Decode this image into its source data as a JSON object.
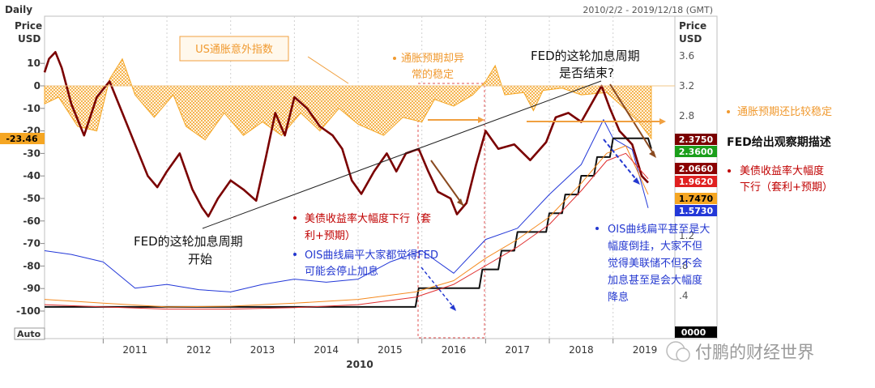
{
  "header": {
    "period": "Daily",
    "range": "2010/2/2 - 2019/12/18 (GMT)",
    "left_axis_title": [
      "Price",
      "USD"
    ],
    "right_axis_title": [
      "Price",
      "USD"
    ],
    "auto_label": "Auto",
    "year_label": "2010"
  },
  "colors": {
    "surprise": "#f5a623",
    "yield": "#7a0000",
    "ois": "#2338d8",
    "fed_rate": "#101010",
    "orange_line": "#f58a1f",
    "red_thin": "#e03030",
    "annotation_blue": "#2438d0",
    "annotation_red": "#c00000",
    "annotation_orange": "#f59a3a"
  },
  "annotations": {
    "us_surprise_box": "US通胀意外指数",
    "infl_stable_1": "通胀预期却异",
    "infl_stable_2": "常的稳定",
    "fed_end_1": "FED的这轮加息周期",
    "fed_end_2": "是否结束?",
    "infl_still_stable": "通胀预期还比较稳定",
    "fed_observe": "FED给出观察期描述",
    "yield_drop_right_1": "美债收益率大幅度",
    "yield_drop_right_2": "下行（套利+预期）",
    "fed_start_1": "FED的这轮加息周期",
    "fed_start_2": "开始",
    "yield_drop_mid_1": "美债收益率大幅度下行（套",
    "yield_drop_mid_2": "利+预期）",
    "ois_mid_1": "OIS曲线扁平大家都觉得FED",
    "ois_mid_2": "可能会停止加息",
    "ois_right_1": "OIS曲线扁平甚至是大",
    "ois_right_2": "幅度倒挂，大家不但",
    "ois_right_3": "觉得美联储不但不会",
    "ois_right_4": "加息甚至是会大幅度",
    "ois_right_5": "降息"
  },
  "value_tags": [
    {
      "label": "-23.46",
      "bg": "#f5a623",
      "fg": "#000000"
    },
    {
      "label": "2.3750",
      "bg": "#7a0000",
      "fg": "#ffffff"
    },
    {
      "label": "2.3600",
      "bg": "#1a9e1a",
      "fg": "#ffffff"
    },
    {
      "label": "2.0660",
      "bg": "#8a0000",
      "fg": "#ffffff"
    },
    {
      "label": "1.9620",
      "bg": "#e02020",
      "fg": "#ffffff"
    },
    {
      "label": "1.7470",
      "bg": "#f5a623",
      "fg": "#000000"
    },
    {
      "label": "1.5730",
      "bg": "#2338d8",
      "fg": "#ffffff"
    },
    {
      "label": "0000",
      "bg": "#000000",
      "fg": "#ffffff"
    }
  ],
  "watermark": "付鹏的财经世界",
  "chart_data": {
    "type": "line",
    "x_range": [
      "2010-02-02",
      "2019-12-18"
    ],
    "x_tick_labels": [
      "2011",
      "2012",
      "2013",
      "2014",
      "2015",
      "2016",
      "2017",
      "2018",
      "2019"
    ],
    "left_axis": {
      "ticks": [
        10,
        0,
        -10,
        -20,
        -30,
        -40,
        -50,
        -60,
        -70,
        -80,
        -90,
        -100
      ],
      "range": [
        -110,
        20
      ]
    },
    "right_axis": {
      "ticks": [
        "3.6",
        "3.2",
        "2.8",
        "1.2",
        ".8",
        ".4"
      ],
      "range": [
        0,
        3.8
      ]
    },
    "series": [
      {
        "name": "US通胀意外指数",
        "axis": "left",
        "points": [
          [
            2010.08,
            -8
          ],
          [
            2010.3,
            -5
          ],
          [
            2010.6,
            -18
          ],
          [
            2010.9,
            -20
          ],
          [
            2011.1,
            3
          ],
          [
            2011.3,
            12
          ],
          [
            2011.5,
            -4
          ],
          [
            2011.8,
            -14
          ],
          [
            2012.1,
            -4
          ],
          [
            2012.3,
            -18
          ],
          [
            2012.6,
            -24
          ],
          [
            2012.9,
            -12
          ],
          [
            2013.2,
            -22
          ],
          [
            2013.5,
            -16
          ],
          [
            2013.8,
            -22
          ],
          [
            2014.1,
            -12
          ],
          [
            2014.4,
            -20
          ],
          [
            2014.7,
            -10
          ],
          [
            2015.0,
            -17
          ],
          [
            2015.4,
            -22
          ],
          [
            2015.7,
            -14
          ],
          [
            2016.0,
            -16
          ],
          [
            2016.2,
            -6
          ],
          [
            2016.5,
            -9
          ],
          [
            2016.8,
            -4
          ],
          [
            2017.0,
            2
          ],
          [
            2017.15,
            9
          ],
          [
            2017.3,
            -4
          ],
          [
            2017.6,
            -3
          ],
          [
            2017.75,
            -11
          ],
          [
            2017.9,
            -2
          ],
          [
            2018.2,
            -1
          ],
          [
            2018.5,
            -4
          ],
          [
            2018.9,
            -3
          ],
          [
            2019.1,
            -8
          ],
          [
            2019.4,
            -16
          ],
          [
            2019.6,
            -23.46
          ]
        ]
      },
      {
        "name": "",
        "axis": "left",
        "points": [
          [
            2010.08,
            6
          ],
          [
            2010.15,
            12
          ],
          [
            2010.25,
            15
          ],
          [
            2010.35,
            8
          ],
          [
            2010.5,
            -8
          ],
          [
            2010.7,
            -22
          ],
          [
            2010.9,
            -5
          ],
          [
            2011.1,
            2
          ],
          [
            2011.3,
            -12
          ],
          [
            2011.5,
            -26
          ],
          [
            2011.7,
            -40
          ],
          [
            2011.85,
            -45
          ],
          [
            2012.0,
            -38
          ],
          [
            2012.2,
            -30
          ],
          [
            2012.4,
            -46
          ],
          [
            2012.55,
            -54
          ],
          [
            2012.65,
            -58
          ],
          [
            2012.8,
            -50
          ],
          [
            2013.0,
            -42
          ],
          [
            2013.2,
            -46
          ],
          [
            2013.4,
            -51
          ],
          [
            2013.55,
            -32
          ],
          [
            2013.7,
            -12
          ],
          [
            2013.85,
            -22
          ],
          [
            2014.0,
            -5
          ],
          [
            2014.2,
            -10
          ],
          [
            2014.4,
            -18
          ],
          [
            2014.6,
            -22
          ],
          [
            2014.75,
            -28
          ],
          [
            2014.9,
            -42
          ],
          [
            2015.05,
            -48
          ],
          [
            2015.25,
            -38
          ],
          [
            2015.45,
            -30
          ],
          [
            2015.6,
            -38
          ],
          [
            2015.75,
            -30
          ],
          [
            2015.95,
            -28
          ],
          [
            2016.1,
            -38
          ],
          [
            2016.25,
            -47
          ],
          [
            2016.45,
            -50
          ],
          [
            2016.55,
            -57
          ],
          [
            2016.7,
            -52
          ],
          [
            2016.85,
            -35
          ],
          [
            2017.0,
            -20
          ],
          [
            2017.2,
            -28
          ],
          [
            2017.45,
            -26
          ],
          [
            2017.7,
            -33
          ],
          [
            2017.95,
            -25
          ],
          [
            2018.1,
            -14
          ],
          [
            2018.3,
            -12
          ],
          [
            2018.5,
            -16
          ],
          [
            2018.7,
            -6
          ],
          [
            2018.82,
            0
          ],
          [
            2018.95,
            -10
          ],
          [
            2019.1,
            -20
          ],
          [
            2019.3,
            -26
          ],
          [
            2019.45,
            -40
          ],
          [
            2019.55,
            -43
          ]
        ]
      },
      {
        "name": "",
        "axis": "right",
        "points": [
          [
            2010.08,
            1.0
          ],
          [
            2010.5,
            0.95
          ],
          [
            2011.0,
            0.85
          ],
          [
            2011.5,
            0.5
          ],
          [
            2012.0,
            0.55
          ],
          [
            2012.5,
            0.48
          ],
          [
            2013.0,
            0.45
          ],
          [
            2013.5,
            0.55
          ],
          [
            2014.0,
            0.62
          ],
          [
            2014.5,
            0.58
          ],
          [
            2015.0,
            0.62
          ],
          [
            2015.5,
            0.85
          ],
          [
            2016.0,
            1.0
          ],
          [
            2016.5,
            0.7
          ],
          [
            2017.0,
            1.15
          ],
          [
            2017.5,
            1.3
          ],
          [
            2018.0,
            1.75
          ],
          [
            2018.5,
            2.15
          ],
          [
            2018.85,
            2.75
          ],
          [
            2019.0,
            2.5
          ],
          [
            2019.3,
            2.35
          ],
          [
            2019.55,
            1.57
          ]
        ]
      },
      {
        "name": "",
        "axis": "right",
        "points": [
          [
            2010.08,
            0.25
          ],
          [
            2015.9,
            0.25
          ],
          [
            2015.95,
            0.5
          ],
          [
            2016.9,
            0.5
          ],
          [
            2016.95,
            0.75
          ],
          [
            2017.2,
            0.75
          ],
          [
            2017.25,
            1.0
          ],
          [
            2017.45,
            1.0
          ],
          [
            2017.5,
            1.25
          ],
          [
            2017.95,
            1.25
          ],
          [
            2018.0,
            1.5
          ],
          [
            2018.2,
            1.5
          ],
          [
            2018.25,
            1.75
          ],
          [
            2018.45,
            1.75
          ],
          [
            2018.5,
            2.0
          ],
          [
            2018.7,
            2.0
          ],
          [
            2018.75,
            2.25
          ],
          [
            2018.95,
            2.25
          ],
          [
            2019.0,
            2.5
          ],
          [
            2019.55,
            2.5
          ],
          [
            2019.6,
            2.36
          ]
        ]
      },
      {
        "name": "",
        "axis": "right",
        "points": [
          [
            2010.08,
            0.35
          ],
          [
            2011.0,
            0.3
          ],
          [
            2012.0,
            0.25
          ],
          [
            2013.0,
            0.26
          ],
          [
            2014.0,
            0.3
          ],
          [
            2015.0,
            0.35
          ],
          [
            2015.9,
            0.45
          ],
          [
            2016.5,
            0.6
          ],
          [
            2017.0,
            0.9
          ],
          [
            2017.5,
            1.15
          ],
          [
            2018.0,
            1.45
          ],
          [
            2018.5,
            1.9
          ],
          [
            2018.9,
            2.3
          ],
          [
            2019.2,
            2.4
          ],
          [
            2019.55,
            1.75
          ]
        ]
      },
      {
        "name": "",
        "axis": "right",
        "points": [
          [
            2010.08,
            0.28
          ],
          [
            2011.0,
            0.25
          ],
          [
            2012.0,
            0.22
          ],
          [
            2013.0,
            0.22
          ],
          [
            2014.0,
            0.24
          ],
          [
            2015.0,
            0.28
          ],
          [
            2015.9,
            0.38
          ],
          [
            2016.5,
            0.55
          ],
          [
            2017.0,
            0.8
          ],
          [
            2017.5,
            1.05
          ],
          [
            2018.0,
            1.35
          ],
          [
            2018.5,
            1.8
          ],
          [
            2018.9,
            2.2
          ],
          [
            2019.2,
            2.3
          ],
          [
            2019.55,
            1.96
          ]
        ]
      }
    ],
    "ylabel_left": "Price USD",
    "ylabel_right": "Price USD"
  }
}
